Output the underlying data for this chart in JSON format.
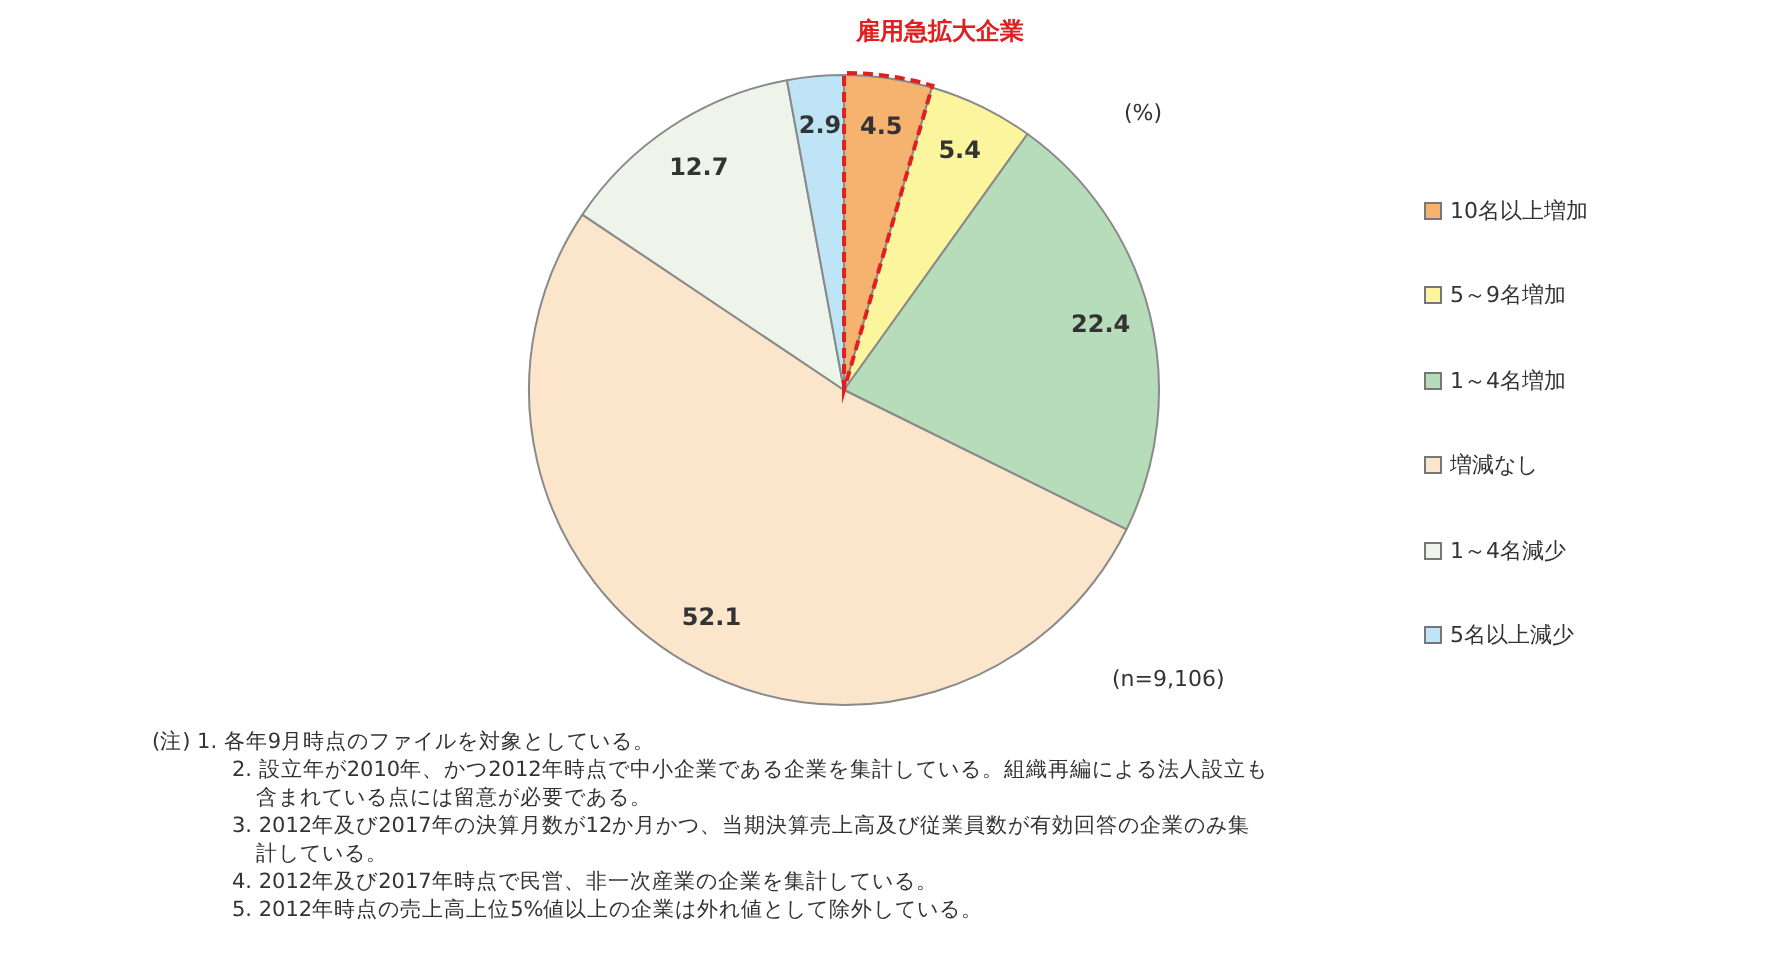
{
  "chart_data": {
    "type": "pie",
    "categories": [
      "10名以上増加",
      "5～9名増加",
      "1～4名増加",
      "増減なし",
      "1～4名減少",
      "5名以上減少"
    ],
    "values": [
      4.5,
      5.4,
      22.4,
      52.1,
      12.7,
      2.9
    ],
    "colors": [
      "#f6b26f",
      "#fbf59e",
      "#b6dcb9",
      "#fbe6cb",
      "#eef4ea",
      "#bfe4f5"
    ],
    "data_labels": true,
    "legend": "right",
    "annotations": [
      {
        "text": "雇用急拡大企業",
        "x": "10名以上増加"
      },
      "(%)",
      "(n=9,106)",
      "(注) 1. 各年9月時点のファイルを対象としている。",
      "2. 設立年が2010年、かつ2012年時点で中小企業である企業を集計している。組織再編による法人設立も含まれている点には留意が必要である。",
      "3. 2012年及び2017年の決算月数が12か月かつ、当期決算売上高及び従業員数が有効回答の企業のみ集計している。",
      "4. 2012年及び2017年時点で民営、非一次産業の企業を集計している。",
      "5. 2012年時点の売上高上位5%値以上の企業は外れ値として除外している。"
    ]
  }
}
